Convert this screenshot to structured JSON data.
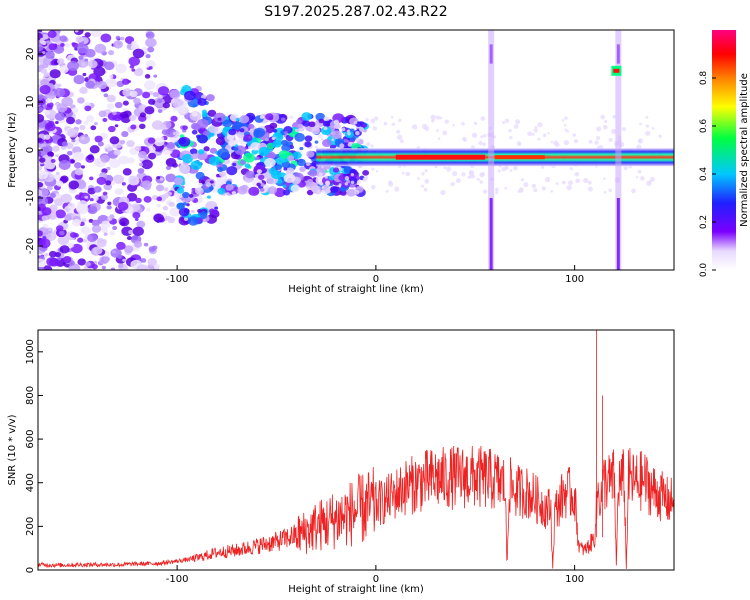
{
  "page": {
    "title": "S197.2025.287.02.43.R22"
  },
  "colors": {
    "snr_line": "#ee2222",
    "axis": "#000000",
    "background": "#ffffff"
  },
  "chart_data": [
    {
      "type": "heatmap",
      "title": "S197.2025.287.02.43.R22",
      "xlabel": "Height of straight line (km)",
      "ylabel": "Frequency (Hz)",
      "xlim": [
        -170,
        150
      ],
      "ylim": [
        -25,
        25
      ],
      "xticks": [
        -100,
        0,
        100
      ],
      "xtick_labels": [
        "-100",
        "0",
        "100"
      ],
      "yticks": [
        -20,
        -10,
        0,
        10,
        20
      ],
      "ytick_labels": [
        "-20",
        "-10",
        "0",
        "10",
        "20"
      ],
      "colorbar": {
        "label": "Normalized spectral amplitude",
        "range": [
          0.0,
          1.0
        ],
        "ticks": [
          0.0,
          0.2,
          0.4,
          0.6,
          0.8
        ],
        "tick_labels": [
          "0.0",
          "0.2",
          "0.4",
          "0.6",
          "0.8"
        ],
        "colormap": "rainbow (white-violet-blue-cyan-green-yellow-red-magenta)"
      },
      "features": {
        "main_tone_freq_hz": -1.5,
        "main_tone_x_range_km": [
          -30,
          150
        ],
        "max_amplitude_x_range_km": [
          10,
          55
        ],
        "noise_region_x_range_km": [
          -170,
          -30
        ],
        "vertical_streak_x_km": [
          58,
          122
        ],
        "side_tone": {
          "x_km": 121,
          "freq_hz": 16.5
        }
      }
    },
    {
      "type": "line",
      "xlabel": "Height of straight line (km)",
      "ylabel": "SNR (10 * v/v)",
      "xlim": [
        -170,
        150
      ],
      "ylim": [
        0,
        1100
      ],
      "xticks": [
        -100,
        0,
        100
      ],
      "xtick_labels": [
        "-100",
        "0",
        "100"
      ],
      "yticks": [
        0,
        200,
        400,
        600,
        800,
        1000
      ],
      "ytick_labels": [
        "0",
        "200",
        "400",
        "600",
        "800",
        "1000"
      ],
      "series": [
        {
          "name": "SNR",
          "x": [
            -170,
            -160,
            -150,
            -140,
            -130,
            -120,
            -110,
            -100,
            -90,
            -80,
            -70,
            -60,
            -50,
            -45,
            -40,
            -35,
            -30,
            -25,
            -20,
            -15,
            -10,
            -5,
            0,
            5,
            10,
            15,
            20,
            25,
            30,
            35,
            40,
            45,
            50,
            55,
            60,
            65,
            66,
            67,
            68,
            70,
            75,
            80,
            85,
            88,
            89,
            90,
            92,
            95,
            100,
            102,
            103,
            105,
            108,
            110,
            111,
            112,
            113,
            115,
            118,
            120,
            121,
            122,
            123,
            125,
            126,
            127,
            128,
            130,
            135,
            140,
            145,
            148,
            149,
            150
          ],
          "values": [
            25,
            22,
            24,
            25,
            24,
            28,
            30,
            40,
            55,
            80,
            90,
            110,
            130,
            145,
            160,
            175,
            200,
            215,
            235,
            250,
            270,
            285,
            300,
            320,
            350,
            380,
            395,
            410,
            420,
            420,
            425,
            425,
            425,
            420,
            410,
            395,
            5,
            390,
            380,
            360,
            360,
            330,
            290,
            280,
            5,
            270,
            300,
            360,
            340,
            120,
            100,
            90,
            120,
            150,
            280,
            380,
            320,
            410,
            400,
            420,
            5,
            410,
            400,
            420,
            5,
            410,
            420,
            400,
            410,
            360,
            330,
            310,
            320,
            330
          ]
        }
      ],
      "annotations": [
        {
          "x": 111,
          "y": 1100,
          "note": "spike"
        },
        {
          "x": 114,
          "y": 800,
          "note": "spike"
        }
      ]
    }
  ]
}
